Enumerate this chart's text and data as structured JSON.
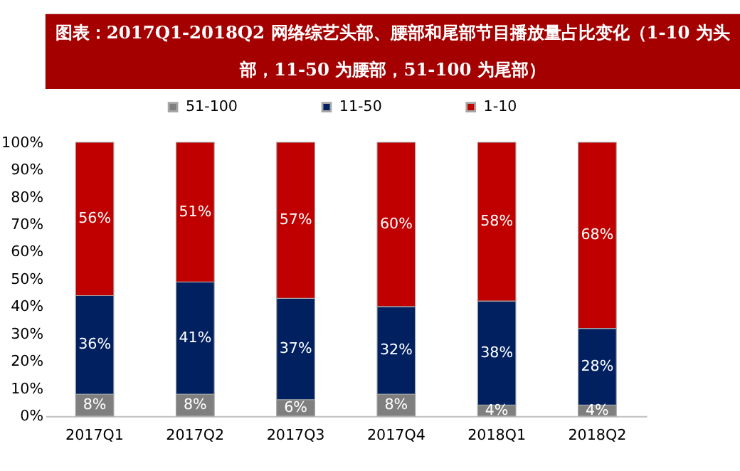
{
  "chart_data": {
    "type": "bar",
    "stacked": true,
    "title": "图表：2017Q1-2018Q2 网络综艺头部、腰部和尾部节目播放量占比变化（1-10 为头部，11-50 为腰部，51-100 为尾部）",
    "categories": [
      "2017Q1",
      "2017Q2",
      "2017Q3",
      "2017Q4",
      "2018Q1",
      "2018Q2"
    ],
    "series": [
      {
        "name": "51-100",
        "color": "#7f7f7f",
        "values": [
          8,
          8,
          6,
          8,
          4,
          4
        ],
        "value_labels": [
          "8%",
          "8%",
          "6%",
          "8%",
          "4%",
          "4%"
        ]
      },
      {
        "name": "11-50",
        "color": "#002060",
        "values": [
          36,
          41,
          37,
          32,
          38,
          28
        ],
        "value_labels": [
          "36%",
          "41%",
          "37%",
          "32%",
          "38%",
          "28%"
        ]
      },
      {
        "name": "1-10",
        "color": "#c00000",
        "values": [
          56,
          51,
          57,
          60,
          58,
          68
        ],
        "value_labels": [
          "56%",
          "51%",
          "57%",
          "60%",
          "58%",
          "68%"
        ]
      }
    ],
    "ylim": [
      0,
      100
    ],
    "yticks": [
      {
        "value": 0,
        "label": "0%"
      },
      {
        "value": 10,
        "label": "10%"
      },
      {
        "value": 20,
        "label": "20%"
      },
      {
        "value": 30,
        "label": "30%"
      },
      {
        "value": 40,
        "label": "40%"
      },
      {
        "value": 50,
        "label": "50%"
      },
      {
        "value": 60,
        "label": "60%"
      },
      {
        "value": 70,
        "label": "70%"
      },
      {
        "value": 80,
        "label": "80%"
      },
      {
        "value": 90,
        "label": "90%"
      },
      {
        "value": 100,
        "label": "100%"
      }
    ],
    "grid": false,
    "legend": "top"
  }
}
